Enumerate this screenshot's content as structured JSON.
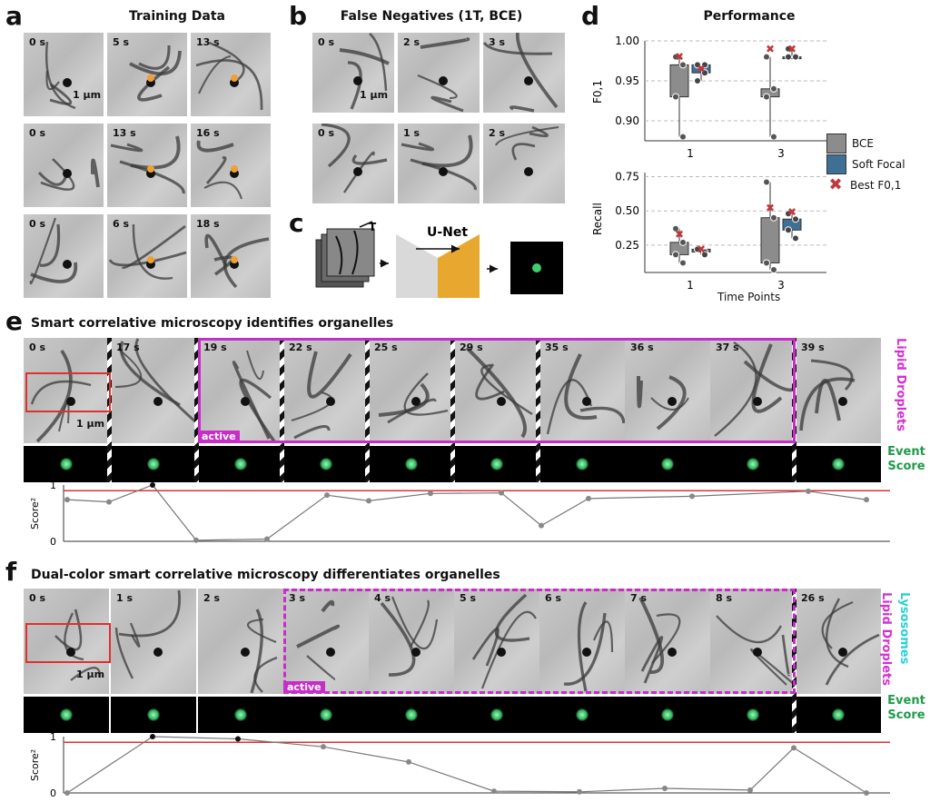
{
  "panels": {
    "a": {
      "label": "a",
      "title": "Training Data",
      "rows": [
        [
          "0 s",
          "5 s",
          "13 s"
        ],
        [
          "0 s",
          "13 s",
          "16 s"
        ],
        [
          "0 s",
          "6 s",
          "18 s"
        ]
      ],
      "scalebar": "1 µm"
    },
    "b": {
      "label": "b",
      "title": "False Negatives (1T, BCE)",
      "rows": [
        [
          "0 s",
          "2 s",
          "3 s"
        ],
        [
          "0 s",
          "1 s",
          "2 s"
        ]
      ],
      "scalebar": "1 µm"
    },
    "c": {
      "label": "c",
      "t_label": "T",
      "net_label": "U-Net"
    },
    "d": {
      "label": "d",
      "title": "Performance",
      "x_label": "Time Points",
      "legend": [
        "BCE",
        "Soft Focal",
        "Best F0,1"
      ]
    },
    "e": {
      "label": "e",
      "title": "Smart correlative microscopy identifies organelles",
      "times": [
        "0 s",
        "17 s",
        "19 s",
        "22 s",
        "25 s",
        "29 s",
        "35 s",
        "36 s",
        "37 s",
        "39 s"
      ],
      "active": "active",
      "scalebar": "1 µm",
      "side_top": "Lipid Droplets",
      "side_bottom_1": "Event",
      "side_bottom_2": "Score",
      "y_label": "Score²",
      "y_ticks": [
        "1",
        "0"
      ]
    },
    "f": {
      "label": "f",
      "title": "Dual-color smart correlative microscopy differentiates organelles",
      "times": [
        "0 s",
        "1 s",
        "2 s",
        "3 s",
        "4 s",
        "5 s",
        "6 s",
        "7 s",
        "8 s",
        "26 s"
      ],
      "active": "active",
      "scalebar": "1 µm",
      "side_top_1": "Lipid Droplets",
      "side_top_2": "Lysosomes",
      "side_bottom_1": "Event",
      "side_bottom_2": "Score",
      "y_label": "Score²",
      "y_ticks": [
        "1",
        "0"
      ]
    }
  },
  "chart_data": [
    {
      "type": "box",
      "ylabel": "F0,1",
      "xlabel": "",
      "categories": [
        "1",
        "3"
      ],
      "ylim": [
        0.875,
        1.0
      ],
      "yticks": [
        0.9,
        0.95,
        1.0
      ],
      "series": [
        {
          "name": "BCE",
          "color": "#8c8c8c",
          "points": [
            [
              0.98,
              0.97,
              0.93,
              0.88
            ],
            [
              0.98,
              0.94,
              0.93,
              0.88
            ]
          ],
          "best": [
            0.98,
            0.99
          ]
        },
        {
          "name": "Soft Focal",
          "color": "#3f6f94",
          "points": [
            [
              0.97,
              0.96,
              0.95,
              0.97
            ],
            [
              0.99,
              0.98,
              0.98,
              0.98
            ]
          ],
          "best": [
            0.965,
            0.99
          ]
        }
      ]
    },
    {
      "type": "box",
      "ylabel": "Recall",
      "xlabel": "Time Points",
      "categories": [
        "1",
        "3"
      ],
      "ylim": [
        0.05,
        0.78
      ],
      "yticks": [
        0.25,
        0.5,
        0.75
      ],
      "series": [
        {
          "name": "BCE",
          "color": "#8c8c8c",
          "points": [
            [
              0.37,
              0.27,
              0.18,
              0.12
            ],
            [
              0.71,
              0.45,
              0.12,
              0.07
            ]
          ],
          "best": [
            0.33,
            0.52
          ]
        },
        {
          "name": "Soft Focal",
          "color": "#3f6f94",
          "points": [
            [
              0.23,
              0.2,
              0.22,
              0.18
            ],
            [
              0.48,
              0.44,
              0.36,
              0.3
            ]
          ],
          "best": [
            0.22,
            0.49
          ]
        }
      ]
    },
    {
      "type": "line",
      "ylabel": "Score²",
      "xlabel": "",
      "ylim": [
        0,
        1
      ],
      "threshold": 0.9,
      "values": [
        0.74,
        0.7,
        1.0,
        0.02,
        0.04,
        0.82,
        0.72,
        0.85,
        0.86,
        0.28,
        0.76,
        0.8,
        0.89,
        0.74
      ]
    },
    {
      "type": "line",
      "ylabel": "Score²",
      "xlabel": "",
      "ylim": [
        0,
        1
      ],
      "threshold": 0.9,
      "values": [
        0.0,
        1.0,
        0.96,
        0.82,
        0.55,
        0.03,
        0.02,
        0.08,
        0.05,
        0.8,
        0.0
      ]
    }
  ]
}
